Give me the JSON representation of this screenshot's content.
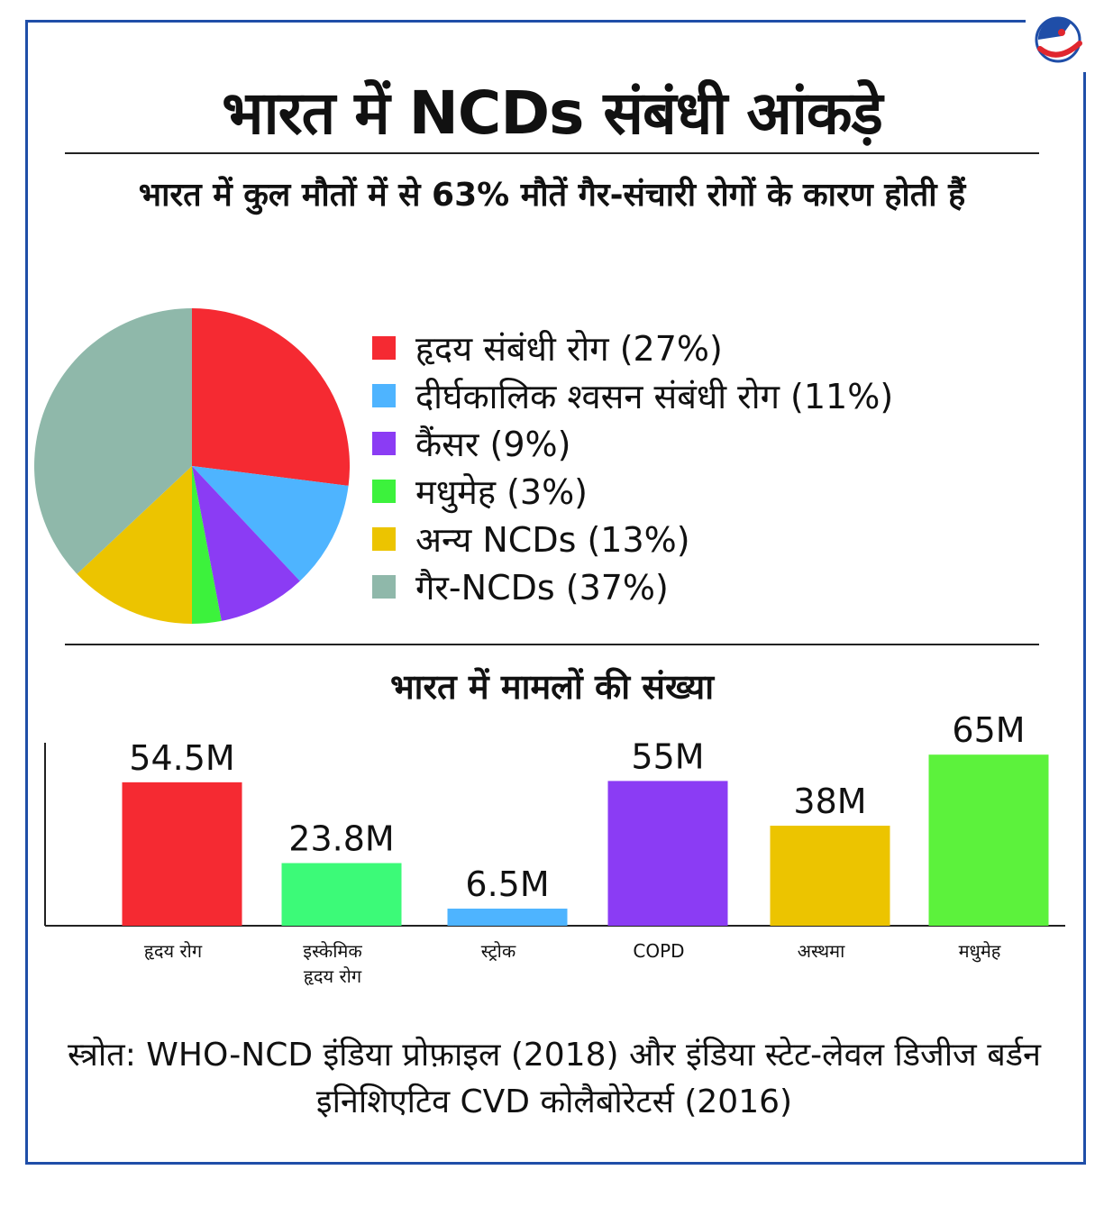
{
  "colors": {
    "frame": "#1f4ea8",
    "heart": "#f52a32",
    "respiratory": "#4eb4ff",
    "cancer": "#8b3cf4",
    "diabetes": "#3cf23c",
    "other_ncds": "#ecc400",
    "non_ncds": "#8fb8aa",
    "ischemic": "#3cfa78"
  },
  "title": "भारत में NCDs संबंधी आंकड़े",
  "chart_data": [
    {
      "type": "pie",
      "title": "भारत में कुल मौतों में से 63% मौतें गैर-संचारी रोगों के कारण होती हैं",
      "slices": [
        {
          "label": "हृदय संबंधी रोग (27%)",
          "value": 27,
          "color": "#f52a32"
        },
        {
          "label": "दीर्घकालिक श्वसन संबंधी रोग (11%)",
          "value": 11,
          "color": "#4eb4ff"
        },
        {
          "label": "कैंसर (9%)",
          "value": 9,
          "color": "#8b3cf4"
        },
        {
          "label": "मधुमेह (3%)",
          "value": 3,
          "color": "#3cf23c"
        },
        {
          "label": "अन्य NCDs (13%)",
          "value": 13,
          "color": "#ecc400"
        },
        {
          "label": "गैर-NCDs (37%)",
          "value": 37,
          "color": "#8fb8aa"
        }
      ]
    },
    {
      "type": "bar",
      "title": "भारत में मामलों की संख्या",
      "categories": [
        "हृदय रोग",
        "इस्केमिक हृदय रोग",
        "स्ट्रोक",
        "COPD",
        "अस्थमा",
        "मधुमेह"
      ],
      "category_lines": [
        [
          "हृदय रोग"
        ],
        [
          "इस्केमिक",
          "हृदय रोग"
        ],
        [
          "स्ट्रोक"
        ],
        [
          "COPD"
        ],
        [
          "अस्थमा"
        ],
        [
          "मधुमेह"
        ]
      ],
      "values": [
        54.5,
        23.8,
        6.5,
        55,
        38,
        65
      ],
      "labels": [
        "54.5M",
        "23.8M",
        "6.5M",
        "55M",
        "38M",
        "65M"
      ],
      "colors": [
        "#f52a32",
        "#3cfa78",
        "#4eb4ff",
        "#8b3cf4",
        "#ecc400",
        "#5cf23c"
      ],
      "unit": "M"
    }
  ],
  "source": "स्त्रोत: WHO-NCD इंडिया प्रोफ़ाइल (2018) और इंडिया स्टेट-लेवल डिजीज बर्डन  इनिशिएटिव CVD कोलैबोरेटर्स (2016)"
}
